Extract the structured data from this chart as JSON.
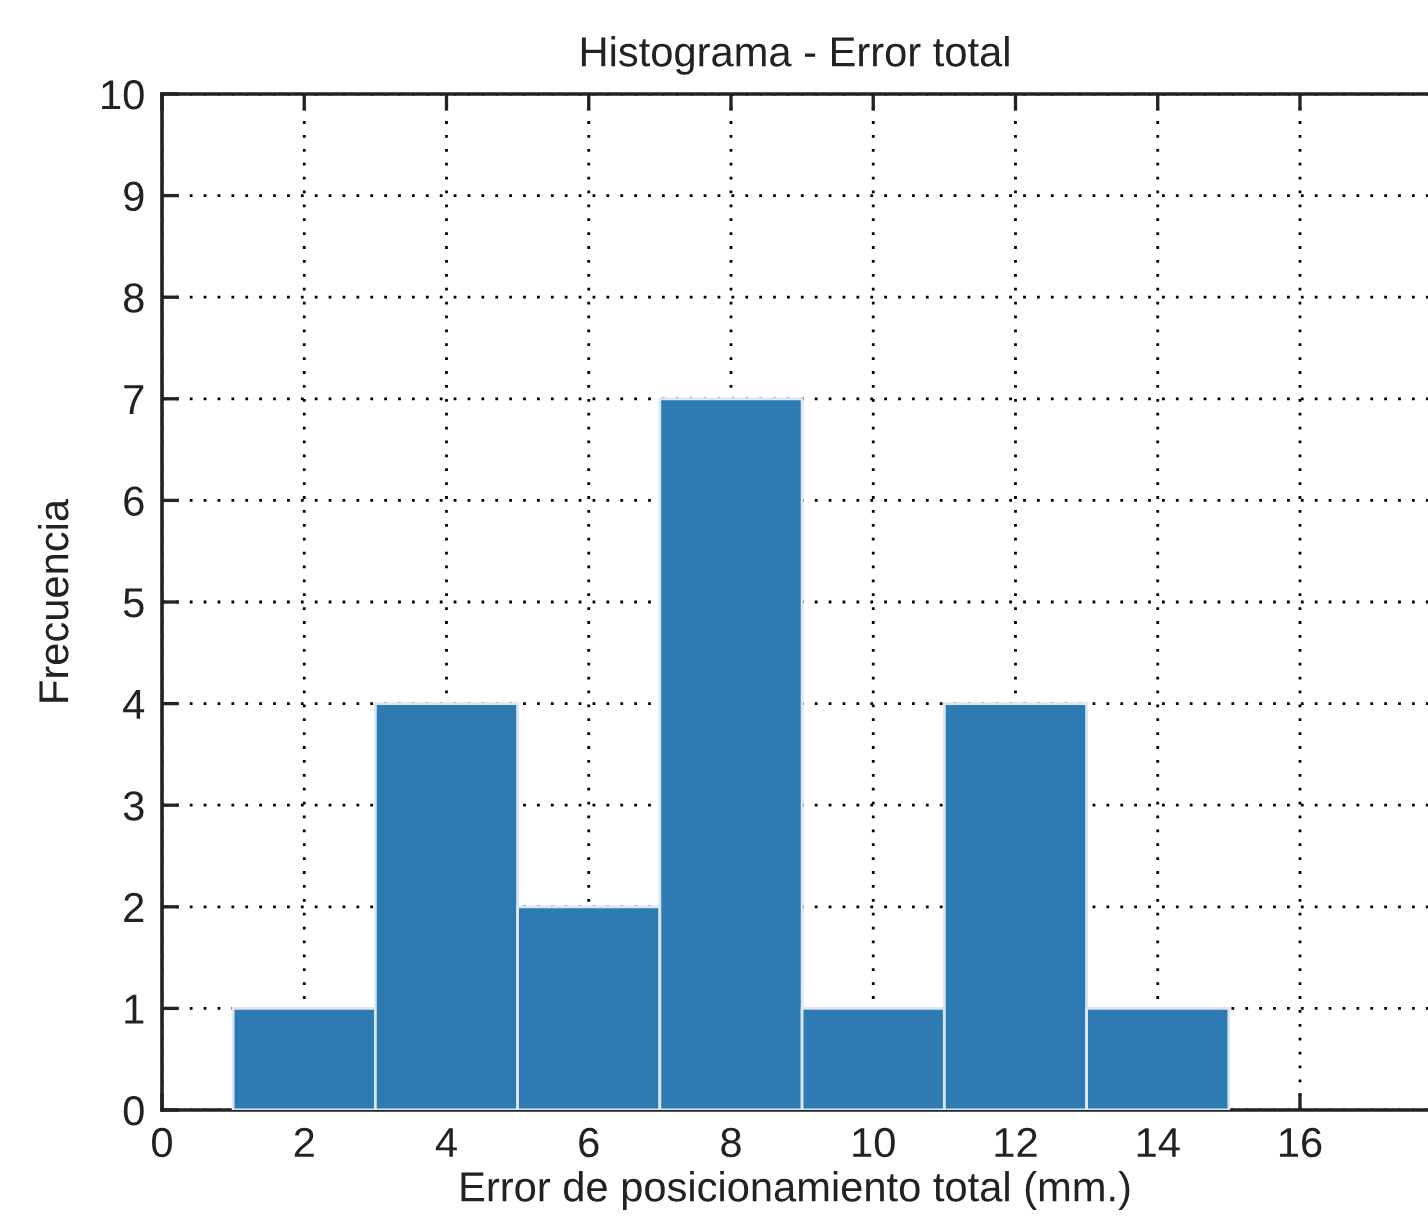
{
  "chart_data": {
    "type": "histogram",
    "title": "Histograma - Error total",
    "xlabel": "Error de posicionamiento total (mm.)",
    "ylabel": "Frecuencia",
    "bins": [
      1,
      3,
      5,
      7,
      9,
      11,
      13,
      15
    ],
    "values": [
      1,
      4,
      2,
      7,
      1,
      4,
      1
    ],
    "color": "#2e7bb4",
    "xlim": [
      0,
      17.8
    ],
    "xticks": [
      0,
      2,
      4,
      6,
      8,
      10,
      12,
      14,
      16
    ],
    "ylim": [
      0,
      10
    ],
    "yticks": [
      0,
      1,
      2,
      3,
      4,
      5,
      6,
      7,
      8,
      9,
      10
    ],
    "grid": true,
    "legend": false
  }
}
